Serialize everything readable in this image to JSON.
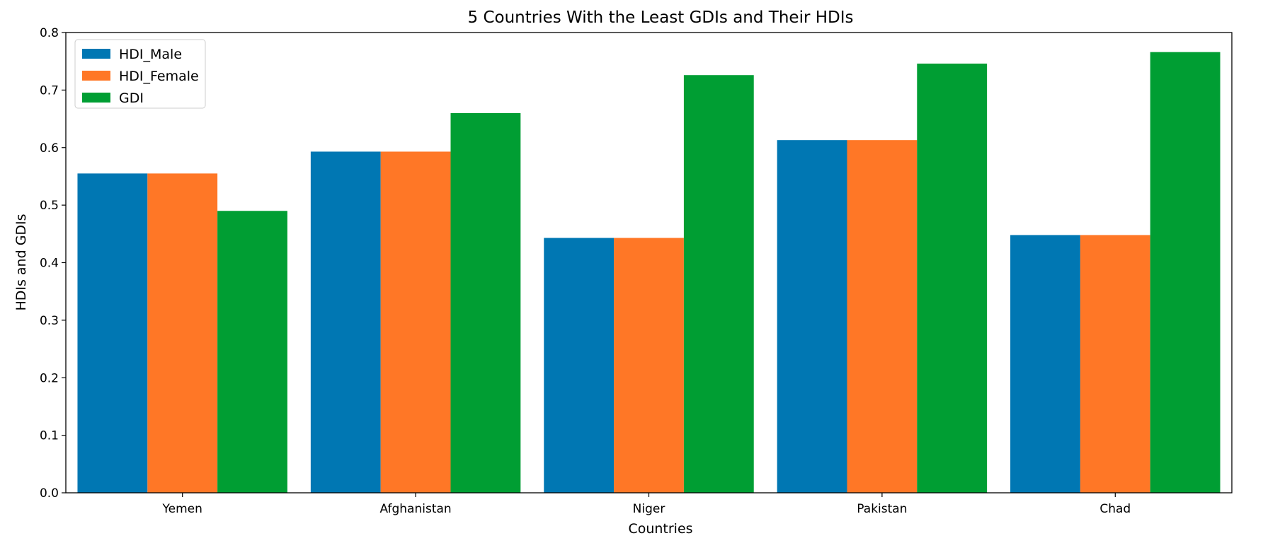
{
  "chart_data": {
    "type": "bar",
    "title": "5 Countries With the Least GDIs and Their HDIs",
    "xlabel": "Countries",
    "ylabel": "HDIs and GDIs",
    "categories": [
      "Yemen",
      "Afghanistan",
      "Niger",
      "Pakistan",
      "Chad"
    ],
    "series": [
      {
        "name": "HDI_Male",
        "color": "#0077b3",
        "values": [
          0.555,
          0.593,
          0.443,
          0.613,
          0.448
        ]
      },
      {
        "name": "HDI_Female",
        "color": "#ff7726",
        "values": [
          0.555,
          0.593,
          0.443,
          0.613,
          0.448
        ]
      },
      {
        "name": "GDI",
        "color": "#009e33",
        "values": [
          0.49,
          0.66,
          0.726,
          0.746,
          0.766
        ]
      }
    ],
    "ylim": [
      0,
      0.8
    ],
    "yticks": [
      "0.0",
      "0.1",
      "0.2",
      "0.3",
      "0.4",
      "0.5",
      "0.6",
      "0.7",
      "0.8"
    ],
    "legend_position": "top-left",
    "grid": false
  }
}
